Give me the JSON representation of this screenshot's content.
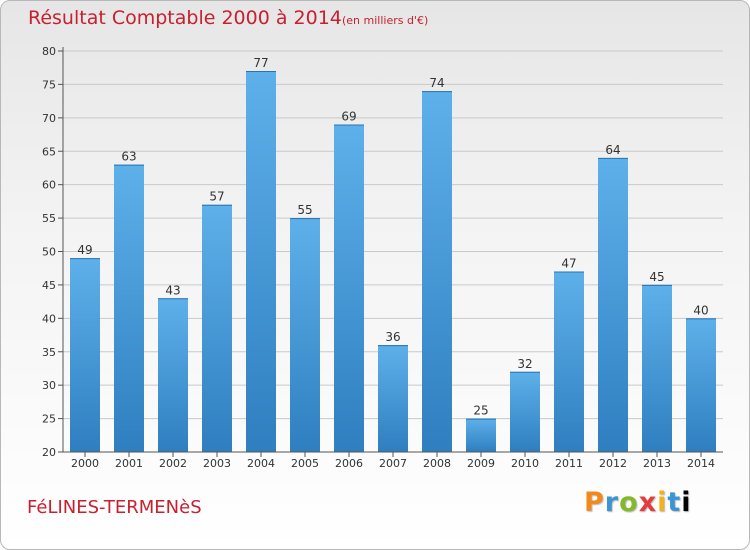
{
  "header": {
    "title": "Résultat Comptable 2000 à 2014",
    "subtitle": "(en milliers d'€)"
  },
  "footer": {
    "town": "FéLINES-TERMENèS",
    "logo_text": "Proxiti"
  },
  "colors": {
    "bar_light": "#5eb0ea",
    "bar_dark": "#2f7fc0",
    "title": "#c8202f"
  },
  "chart_data": {
    "type": "bar",
    "title": "Résultat Comptable 2000 à 2014",
    "subtitle": "(en milliers d'€)",
    "xlabel": "",
    "ylabel": "",
    "categories": [
      "2000",
      "2001",
      "2002",
      "2003",
      "2004",
      "2005",
      "2006",
      "2007",
      "2008",
      "2009",
      "2010",
      "2011",
      "2012",
      "2013",
      "2014"
    ],
    "values": [
      49,
      63,
      43,
      57,
      77,
      55,
      69,
      36,
      74,
      25,
      32,
      47,
      64,
      45,
      40
    ],
    "ylim": [
      20,
      80
    ],
    "yticks": [
      20,
      25,
      30,
      35,
      40,
      45,
      50,
      55,
      60,
      65,
      70,
      75,
      80
    ],
    "grid": true,
    "data_labels": true
  }
}
